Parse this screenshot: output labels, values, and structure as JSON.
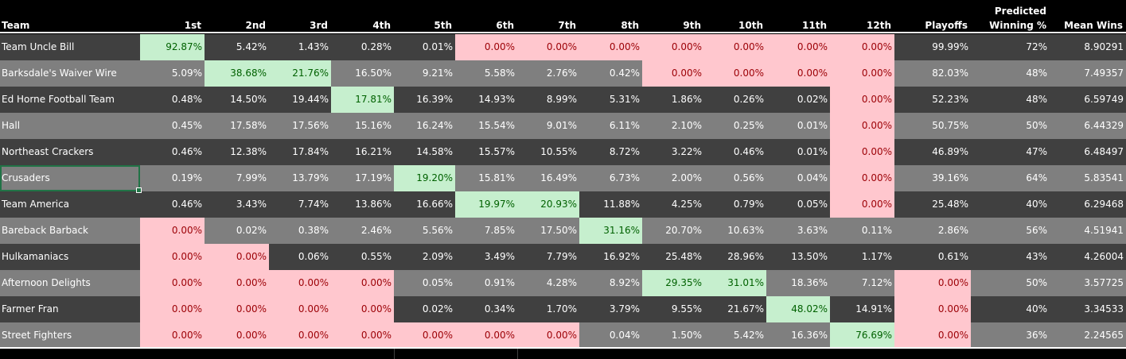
{
  "headers": {
    "team": "Team",
    "places": [
      "1st",
      "2nd",
      "3rd",
      "4th",
      "5th",
      "6th",
      "7th",
      "8th",
      "9th",
      "10th",
      "11th",
      "12th"
    ],
    "playoffs": "Playoffs",
    "predicted_line1": "Predicted",
    "predicted_line2": "Winning %",
    "mean_wins": "Mean Wins"
  },
  "colors": {
    "header_bg": "#000000",
    "row_dark": "#404040",
    "row_light": "#7f7f7f",
    "bad_fill": "#ffc7ce",
    "bad_text": "#9c0006",
    "good_fill": "#c6efce",
    "good_text": "#006100",
    "selection": "#217346"
  },
  "selected_cell": "Crusaders",
  "rows": [
    {
      "team": "Team Uncle Bill",
      "places": [
        "92.87%",
        "5.42%",
        "1.43%",
        "0.28%",
        "0.01%",
        "0.00%",
        "0.00%",
        "0.00%",
        "0.00%",
        "0.00%",
        "0.00%",
        "0.00%"
      ],
      "playoffs": "99.99%",
      "predicted": "72%",
      "mean_wins": "8.90291",
      "fmt": [
        "g",
        "",
        "",
        "",
        "",
        "r",
        "r",
        "r",
        "r",
        "r",
        "r",
        "r"
      ],
      "playoffs_fmt": ""
    },
    {
      "team": "Barksdale's Waiver Wire",
      "places": [
        "5.09%",
        "38.68%",
        "21.76%",
        "16.50%",
        "9.21%",
        "5.58%",
        "2.76%",
        "0.42%",
        "0.00%",
        "0.00%",
        "0.00%",
        "0.00%"
      ],
      "playoffs": "82.03%",
      "predicted": "48%",
      "mean_wins": "7.49357",
      "fmt": [
        "",
        "g",
        "g",
        "",
        "",
        "",
        "",
        "",
        "r",
        "r",
        "r",
        "r"
      ],
      "playoffs_fmt": ""
    },
    {
      "team": "Ed Horne Football Team",
      "places": [
        "0.48%",
        "14.50%",
        "19.44%",
        "17.81%",
        "16.39%",
        "14.93%",
        "8.99%",
        "5.31%",
        "1.86%",
        "0.26%",
        "0.02%",
        "0.00%"
      ],
      "playoffs": "52.23%",
      "predicted": "48%",
      "mean_wins": "6.59749",
      "fmt": [
        "",
        "",
        "",
        "g",
        "",
        "",
        "",
        "",
        "",
        "",
        "",
        "r"
      ],
      "playoffs_fmt": ""
    },
    {
      "team": "Hall",
      "places": [
        "0.45%",
        "17.58%",
        "17.56%",
        "15.16%",
        "16.24%",
        "15.54%",
        "9.01%",
        "6.11%",
        "2.10%",
        "0.25%",
        "0.01%",
        "0.00%"
      ],
      "playoffs": "50.75%",
      "predicted": "50%",
      "mean_wins": "6.44329",
      "fmt": [
        "",
        "",
        "",
        "",
        "",
        "",
        "",
        "",
        "",
        "",
        "",
        "r"
      ],
      "playoffs_fmt": ""
    },
    {
      "team": "Northeast Crackers",
      "places": [
        "0.46%",
        "12.38%",
        "17.84%",
        "16.21%",
        "14.58%",
        "15.57%",
        "10.55%",
        "8.72%",
        "3.22%",
        "0.46%",
        "0.01%",
        "0.00%"
      ],
      "playoffs": "46.89%",
      "predicted": "47%",
      "mean_wins": "6.48497",
      "fmt": [
        "",
        "",
        "",
        "",
        "",
        "",
        "",
        "",
        "",
        "",
        "",
        "r"
      ],
      "playoffs_fmt": ""
    },
    {
      "team": "Crusaders",
      "places": [
        "0.19%",
        "7.99%",
        "13.79%",
        "17.19%",
        "19.20%",
        "15.81%",
        "16.49%",
        "6.73%",
        "2.00%",
        "0.56%",
        "0.04%",
        "0.00%"
      ],
      "playoffs": "39.16%",
      "predicted": "64%",
      "mean_wins": "5.83541",
      "fmt": [
        "",
        "",
        "",
        "",
        "g",
        "",
        "",
        "",
        "",
        "",
        "",
        "r"
      ],
      "playoffs_fmt": ""
    },
    {
      "team": "Team America",
      "places": [
        "0.46%",
        "3.43%",
        "7.74%",
        "13.86%",
        "16.66%",
        "19.97%",
        "20.93%",
        "11.88%",
        "4.25%",
        "0.79%",
        "0.05%",
        "0.00%"
      ],
      "playoffs": "25.48%",
      "predicted": "40%",
      "mean_wins": "6.29468",
      "fmt": [
        "",
        "",
        "",
        "",
        "",
        "g",
        "g",
        "",
        "",
        "",
        "",
        "r"
      ],
      "playoffs_fmt": ""
    },
    {
      "team": "Bareback Barback",
      "places": [
        "0.00%",
        "0.02%",
        "0.38%",
        "2.46%",
        "5.56%",
        "7.85%",
        "17.50%",
        "31.16%",
        "20.70%",
        "10.63%",
        "3.63%",
        "0.11%"
      ],
      "playoffs": "2.86%",
      "predicted": "56%",
      "mean_wins": "4.51941",
      "fmt": [
        "r",
        "",
        "",
        "",
        "",
        "",
        "",
        "g",
        "",
        "",
        "",
        ""
      ],
      "playoffs_fmt": ""
    },
    {
      "team": "Hulkamaniacs",
      "places": [
        "0.00%",
        "0.00%",
        "0.06%",
        "0.55%",
        "2.09%",
        "3.49%",
        "7.79%",
        "16.92%",
        "25.48%",
        "28.96%",
        "13.50%",
        "1.17%"
      ],
      "playoffs": "0.61%",
      "predicted": "43%",
      "mean_wins": "4.26004",
      "fmt": [
        "r",
        "r",
        "",
        "",
        "",
        "",
        "",
        "",
        "",
        "",
        "",
        ""
      ],
      "playoffs_fmt": ""
    },
    {
      "team": "Afternoon Delights",
      "places": [
        "0.00%",
        "0.00%",
        "0.00%",
        "0.00%",
        "0.05%",
        "0.91%",
        "4.28%",
        "8.92%",
        "29.35%",
        "31.01%",
        "18.36%",
        "7.12%"
      ],
      "playoffs": "0.00%",
      "predicted": "50%",
      "mean_wins": "3.57725",
      "fmt": [
        "r",
        "r",
        "r",
        "r",
        "",
        "",
        "",
        "",
        "g",
        "g",
        "",
        ""
      ],
      "playoffs_fmt": "r"
    },
    {
      "team": "Farmer Fran",
      "places": [
        "0.00%",
        "0.00%",
        "0.00%",
        "0.00%",
        "0.02%",
        "0.34%",
        "1.70%",
        "3.79%",
        "9.55%",
        "21.67%",
        "48.02%",
        "14.91%"
      ],
      "playoffs": "0.00%",
      "predicted": "40%",
      "mean_wins": "3.34533",
      "fmt": [
        "r",
        "r",
        "r",
        "r",
        "",
        "",
        "",
        "",
        "",
        "",
        "g",
        ""
      ],
      "playoffs_fmt": "r"
    },
    {
      "team": "Street Fighters",
      "places": [
        "0.00%",
        "0.00%",
        "0.00%",
        "0.00%",
        "0.00%",
        "0.00%",
        "0.00%",
        "0.04%",
        "1.50%",
        "5.42%",
        "16.36%",
        "76.69%"
      ],
      "playoffs": "0.00%",
      "predicted": "36%",
      "mean_wins": "2.24565",
      "fmt": [
        "r",
        "r",
        "r",
        "r",
        "r",
        "r",
        "r",
        "",
        "",
        "",
        "",
        "g"
      ],
      "playoffs_fmt": "r"
    }
  ]
}
